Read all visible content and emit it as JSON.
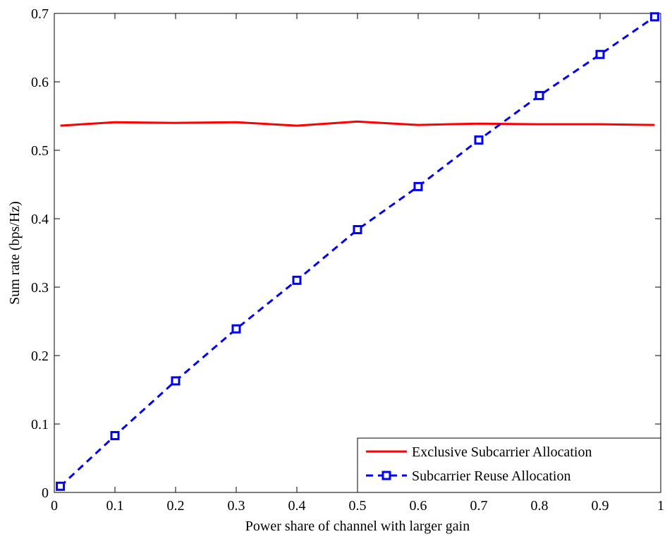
{
  "chart_data": {
    "type": "line",
    "title": "",
    "xlabel": "Power share of channel with larger gain",
    "ylabel": "Sum rate (bps/Hz)",
    "xlim": [
      0,
      1
    ],
    "ylim": [
      0,
      0.7
    ],
    "xticks": [
      "0",
      "0.1",
      "0.2",
      "0.3",
      "0.4",
      "0.5",
      "0.6",
      "0.7",
      "0.8",
      "0.9",
      "1"
    ],
    "yticks": [
      "0",
      "0.1",
      "0.2",
      "0.3",
      "0.4",
      "0.5",
      "0.6",
      "0.7"
    ],
    "grid": false,
    "legend_position": "bottom-right",
    "series": [
      {
        "name": "Exclusive Subcarrier Allocation",
        "color": "#ff0000",
        "style": "solid",
        "marker": "none",
        "x": [
          0.01,
          0.1,
          0.2,
          0.3,
          0.4,
          0.5,
          0.6,
          0.7,
          0.8,
          0.9,
          0.99
        ],
        "y": [
          0.536,
          0.541,
          0.54,
          0.541,
          0.536,
          0.542,
          0.537,
          0.539,
          0.538,
          0.538,
          0.537
        ]
      },
      {
        "name": "Subcarrier Reuse Allocation",
        "color": "#0000ff",
        "style": "dashed",
        "marker": "square",
        "x": [
          0.01,
          0.1,
          0.2,
          0.3,
          0.4,
          0.5,
          0.6,
          0.7,
          0.8,
          0.9,
          0.99
        ],
        "y": [
          0.009,
          0.083,
          0.163,
          0.239,
          0.31,
          0.384,
          0.447,
          0.515,
          0.58,
          0.64,
          0.695
        ]
      }
    ]
  }
}
